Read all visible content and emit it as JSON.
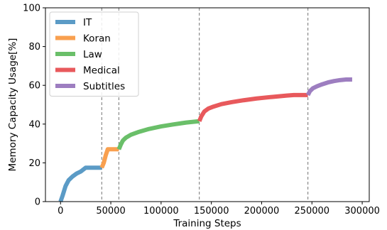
{
  "chart_data": {
    "type": "line",
    "xlabel": "Training Steps",
    "ylabel": "Memory Capacity Usage[%]",
    "xlim": [
      -15000,
      307000
    ],
    "ylim": [
      0,
      100
    ],
    "xticks": [
      0,
      50000,
      100000,
      150000,
      200000,
      250000,
      300000
    ],
    "xtick_labels": [
      "0",
      "50000",
      "100000",
      "150000",
      "200000",
      "250000",
      "300000"
    ],
    "yticks": [
      0,
      20,
      40,
      60,
      80,
      100
    ],
    "ytick_labels": [
      "0",
      "20",
      "40",
      "60",
      "80",
      "100"
    ],
    "grid": false,
    "legend_position": "top-left",
    "domain_boundaries": [
      41000,
      58000,
      138000,
      246000
    ],
    "series": [
      {
        "name": "IT",
        "color": "#5b9bc6",
        "x": [
          0,
          2000,
          5000,
          8000,
          12000,
          16000,
          20000,
          25000,
          30000,
          35000,
          41000
        ],
        "y": [
          0,
          3,
          8,
          11,
          13,
          14.5,
          15.5,
          17.5,
          17.5,
          17.5,
          17.5
        ]
      },
      {
        "name": "Koran",
        "color": "#f9a04f",
        "x": [
          41000,
          43000,
          45000,
          47000,
          50000,
          54000,
          58000
        ],
        "y": [
          17.5,
          20,
          24,
          27,
          27,
          27,
          27
        ]
      },
      {
        "name": "Law",
        "color": "#6abf69",
        "x": [
          58000,
          60000,
          62000,
          65000,
          70000,
          78000,
          88000,
          100000,
          112000,
          125000,
          138000
        ],
        "y": [
          27,
          29.5,
          31.5,
          33,
          34.5,
          36,
          37.5,
          38.8,
          39.8,
          40.8,
          41.5
        ]
      },
      {
        "name": "Medical",
        "color": "#e8595c",
        "x": [
          138000,
          140000,
          143000,
          147000,
          152000,
          160000,
          170000,
          182000,
          195000,
          210000,
          225000,
          232000,
          238000,
          246000
        ],
        "y": [
          41.5,
          44,
          46.5,
          48,
          49,
          50.3,
          51.3,
          52.3,
          53.2,
          54,
          54.7,
          55,
          55,
          55
        ]
      },
      {
        "name": "Subtitles",
        "color": "#9d7ec0",
        "x": [
          246000,
          248000,
          251000,
          255000,
          260000,
          266000,
          272000,
          278000,
          284000,
          290000
        ],
        "y": [
          55,
          57,
          58.5,
          59.5,
          60.5,
          61.5,
          62.2,
          62.7,
          63,
          63
        ]
      }
    ]
  }
}
